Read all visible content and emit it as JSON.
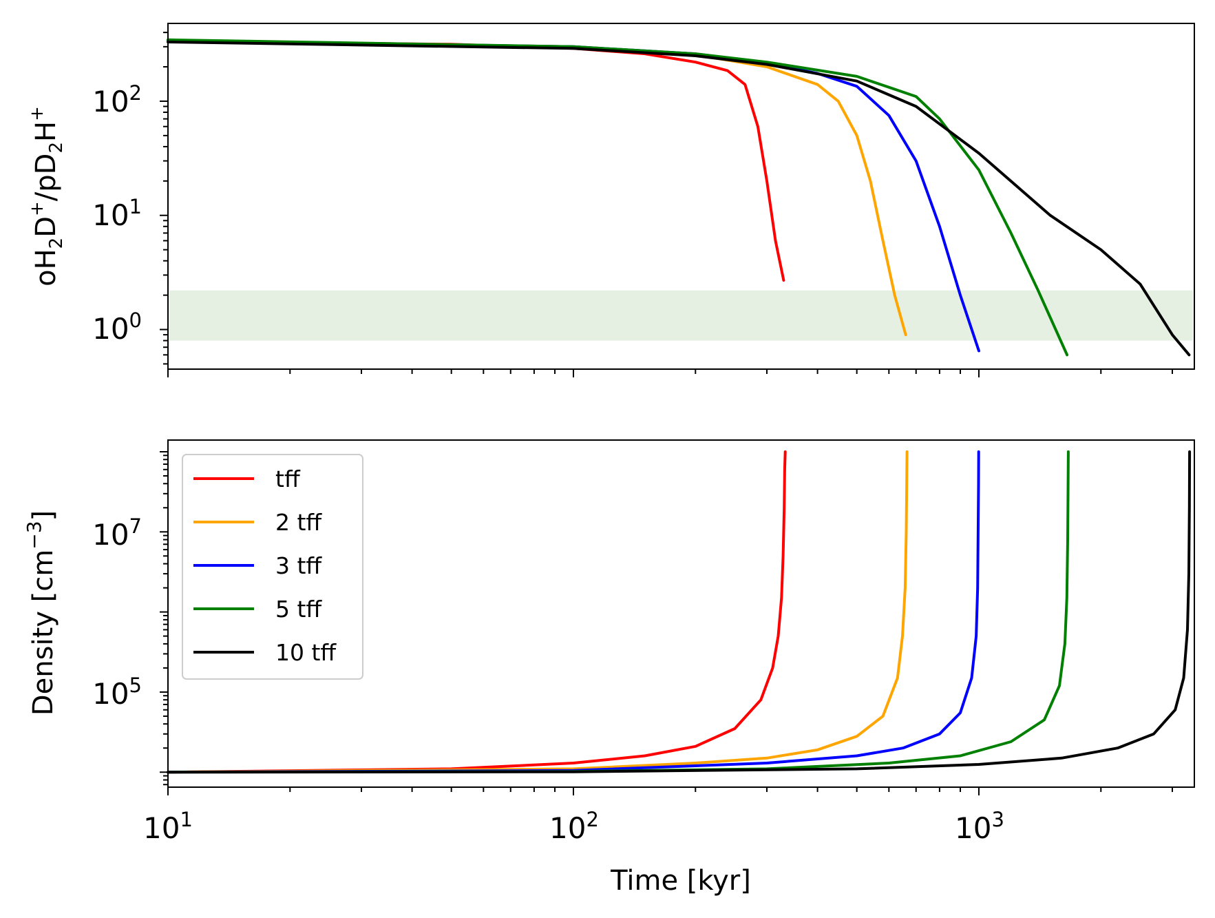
{
  "colors": {
    "tff": "#ff0000",
    "2 tff": "#ffa500",
    "3 tff": "#0000ff",
    "5 tff": "#008000",
    "10 tff": "#000000",
    "band": "#dcebd9"
  },
  "chart_data": [
    {
      "type": "line",
      "panel": "top",
      "xscale": "log",
      "yscale": "log",
      "xlim": [
        10,
        3400
      ],
      "ylim": [
        0.45,
        480
      ],
      "ylabel_parts": [
        "oH",
        "2",
        "D",
        "+",
        "/pD",
        "2",
        "H",
        "+"
      ],
      "ylabel": "oH2D+/pD2H+",
      "yticks": [
        {
          "value": 1,
          "base": "10",
          "exp": "0"
        },
        {
          "value": 10,
          "base": "10",
          "exp": "1"
        },
        {
          "value": 100,
          "base": "10",
          "exp": "2"
        }
      ],
      "shaded_band": {
        "y_min": 0.8,
        "y_max": 2.2
      },
      "series": [
        {
          "name": "tff",
          "x": [
            10,
            50,
            100,
            150,
            200,
            240,
            265,
            285,
            300,
            315,
            330
          ],
          "y": [
            335,
            315,
            290,
            260,
            220,
            185,
            140,
            60,
            20,
            6,
            2.7
          ]
        },
        {
          "name": "2 tff",
          "x": [
            10,
            100,
            200,
            300,
            400,
            450,
            500,
            540,
            580,
            620,
            660
          ],
          "y": [
            340,
            300,
            255,
            200,
            140,
            100,
            50,
            20,
            6,
            2,
            0.9
          ]
        },
        {
          "name": "3 tff",
          "x": [
            10,
            100,
            200,
            300,
            400,
            500,
            600,
            700,
            800,
            900,
            1000
          ],
          "y": [
            340,
            300,
            260,
            215,
            175,
            135,
            75,
            30,
            8,
            2,
            0.65
          ]
        },
        {
          "name": "5 tff",
          "x": [
            10,
            100,
            200,
            300,
            500,
            700,
            800,
            1000,
            1200,
            1400,
            1650
          ],
          "y": [
            345,
            300,
            260,
            220,
            165,
            110,
            70,
            25,
            7,
            2.2,
            0.6
          ]
        },
        {
          "name": "10 tff",
          "x": [
            10,
            100,
            200,
            300,
            500,
            700,
            1000,
            1500,
            2000,
            2500,
            3000,
            3300
          ],
          "y": [
            330,
            290,
            250,
            210,
            150,
            90,
            35,
            10,
            5,
            2.5,
            0.9,
            0.6
          ]
        }
      ]
    },
    {
      "type": "line",
      "panel": "bottom",
      "xscale": "log",
      "yscale": "log",
      "xlim": [
        10,
        3400
      ],
      "ylim": [
        6500,
        140000000
      ],
      "xlabel": "Time [kyr]",
      "ylabel": "Density [cm",
      "ylabel_exp": "−3",
      "ylabel_close": "]",
      "xticks": [
        {
          "value": 10,
          "base": "10",
          "exp": "1"
        },
        {
          "value": 100,
          "base": "10",
          "exp": "2"
        },
        {
          "value": 1000,
          "base": "10",
          "exp": "3"
        }
      ],
      "yticks": [
        {
          "value": 100000,
          "base": "10",
          "exp": "5"
        },
        {
          "value": 10000000,
          "base": "10",
          "exp": "7"
        }
      ],
      "legend": {
        "position": "top-left",
        "entries": [
          "tff",
          "2 tff",
          "3 tff",
          "5 tff",
          "10 tff"
        ]
      },
      "series": [
        {
          "name": "tff",
          "x": [
            10,
            50,
            100,
            150,
            200,
            250,
            290,
            310,
            320,
            326,
            329,
            331,
            332,
            333
          ],
          "y": [
            10000,
            11000,
            13000,
            16000,
            21000,
            35000,
            80000,
            200000,
            500000,
            1500000,
            5000000,
            20000000,
            60000000,
            100000000
          ]
        },
        {
          "name": "2 tff",
          "x": [
            10,
            100,
            200,
            300,
            400,
            500,
            580,
            630,
            648,
            658,
            662,
            664,
            665
          ],
          "y": [
            10000,
            11000,
            13000,
            15000,
            19000,
            28000,
            50000,
            150000,
            500000,
            2000000,
            10000000,
            40000000,
            100000000
          ]
        },
        {
          "name": "3 tff",
          "x": [
            10,
            100,
            300,
            500,
            650,
            800,
            900,
            960,
            985,
            993,
            996,
            998,
            999
          ],
          "y": [
            10000,
            10500,
            13000,
            16000,
            20000,
            30000,
            55000,
            150000,
            500000,
            2000000,
            10000000,
            40000000,
            100000000
          ]
        },
        {
          "name": "5 tff",
          "x": [
            10,
            100,
            300,
            600,
            900,
            1200,
            1450,
            1580,
            1630,
            1648,
            1656,
            1660,
            1662
          ],
          "y": [
            10000,
            10200,
            11000,
            13000,
            16000,
            24000,
            45000,
            120000,
            400000,
            1500000,
            8000000,
            40000000,
            100000000
          ]
        },
        {
          "name": "10 tff",
          "x": [
            10,
            100,
            500,
            1000,
            1600,
            2200,
            2700,
            3050,
            3200,
            3270,
            3295,
            3305,
            3310
          ],
          "y": [
            10000,
            10100,
            11000,
            12500,
            15000,
            20000,
            30000,
            60000,
            150000,
            600000,
            3000000,
            20000000,
            100000000
          ]
        }
      ]
    }
  ]
}
